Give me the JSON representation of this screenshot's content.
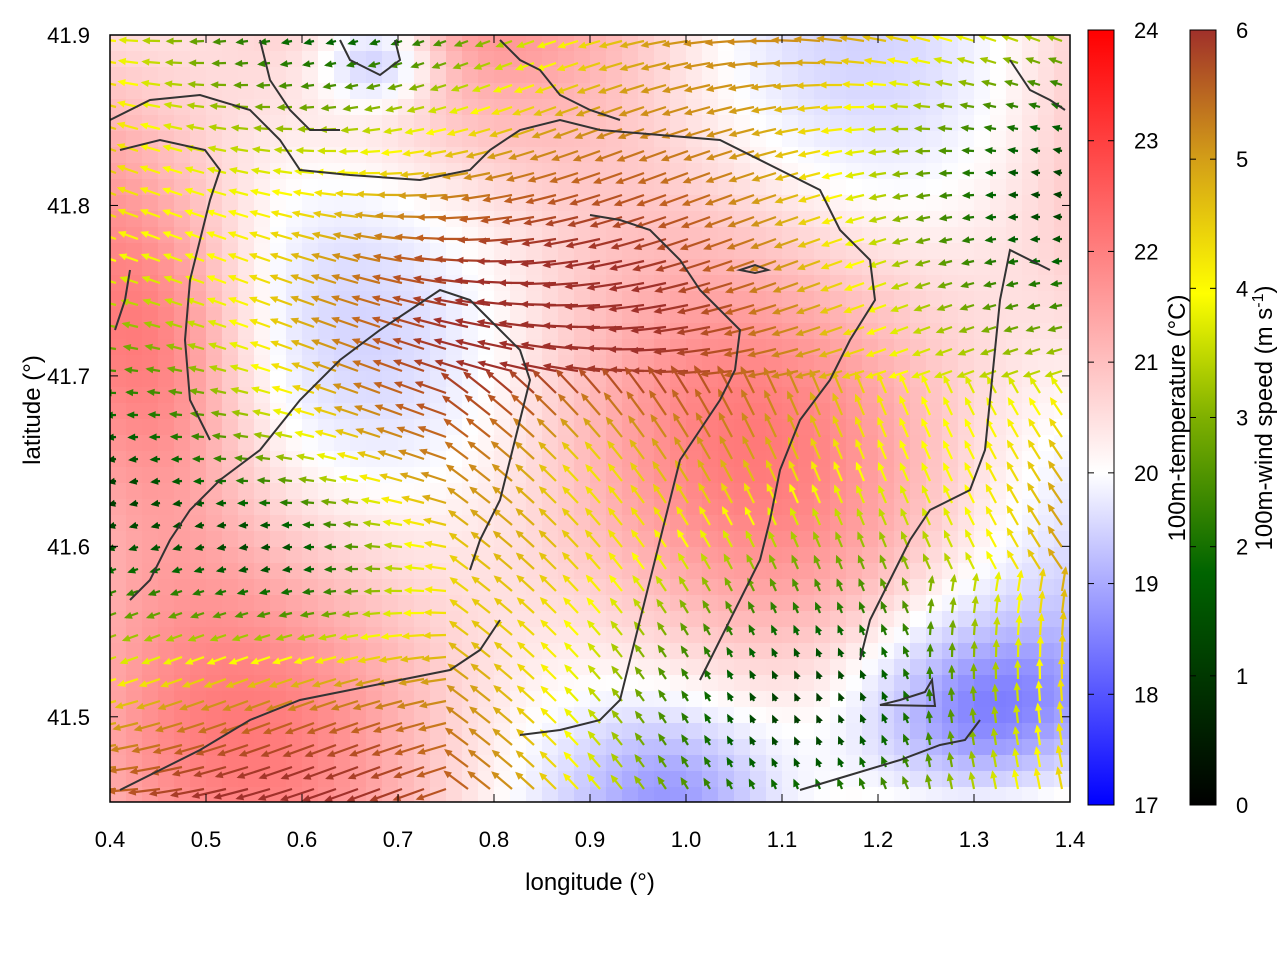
{
  "chart_data": {
    "type": "heatmap",
    "title": "",
    "xlabel": "longitude (°)",
    "ylabel": "latitude (°)",
    "xlim": [
      0.4,
      1.4
    ],
    "ylim": [
      41.45,
      41.9
    ],
    "x_ticks": [
      "0.4",
      "0.5",
      "0.6",
      "0.7",
      "0.8",
      "0.9",
      "1.0",
      "1.1",
      "1.2",
      "1.3",
      "1.4"
    ],
    "y_ticks": [
      "41.5",
      "41.6",
      "41.7",
      "41.8",
      "41.9"
    ],
    "temperature_colorbar": {
      "label": "100m-temperature (°C)",
      "range": [
        17,
        24
      ],
      "ticks": [
        "17",
        "18",
        "19",
        "20",
        "21",
        "22",
        "23",
        "24"
      ],
      "colors": [
        "#0000ff",
        "#ffffff",
        "#ff0000"
      ]
    },
    "wind_colorbar": {
      "label": "100m-wind speed (m s",
      "label_sup": "-1",
      "label_end": ")",
      "range": [
        0,
        6
      ],
      "ticks": [
        "0",
        "1",
        "2",
        "3",
        "4",
        "5",
        "6"
      ],
      "colors": [
        "#000000",
        "#006400",
        "#7fb000",
        "#ffff00",
        "#d4a017",
        "#c06020",
        "#a0302a"
      ]
    },
    "contour_color": "#333333",
    "grid": false
  }
}
